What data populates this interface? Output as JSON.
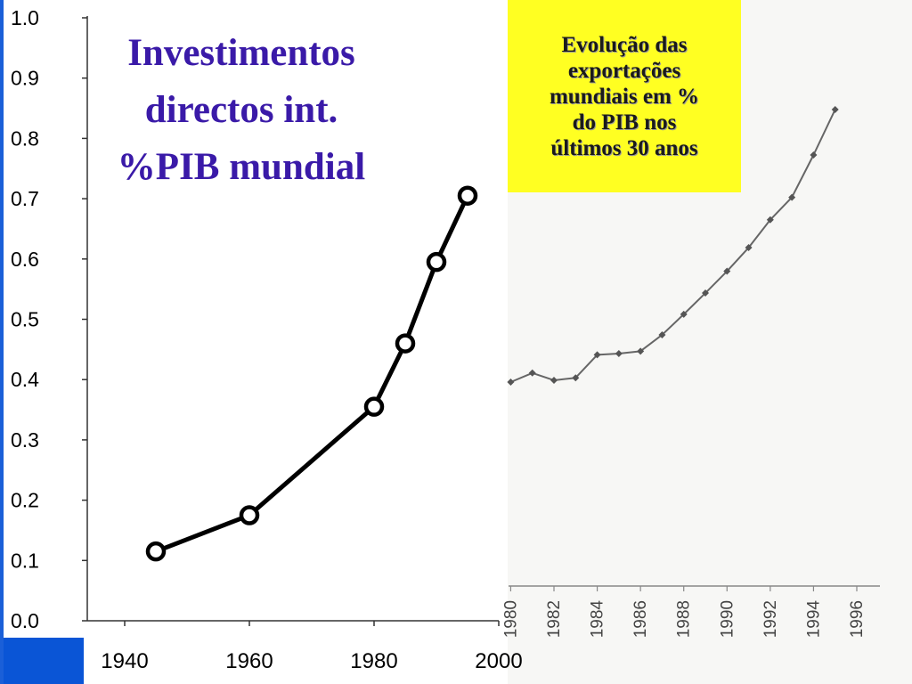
{
  "slide": {
    "background_color": "#1a5fd8",
    "accent_block_color": "#0a55d6",
    "callout": {
      "text": "Evolução das\nexportações\nmundiais em %\ndo PIB nos\núltimos  30 anos",
      "background_color": "#ffff22"
    }
  },
  "chart_data": [
    {
      "type": "line",
      "title": "Investimentos\ndirectos int.\n%PIB mundial",
      "title_color": "#3a1aa8",
      "xlabel": "",
      "ylabel": "",
      "x_ticks": [
        1940,
        1960,
        1980,
        2000
      ],
      "y_ticks": [
        "0.0",
        "0.1",
        "0.2",
        "0.3",
        "0.4",
        "0.5",
        "0.6",
        "0.7",
        "0.8",
        "0.9",
        "1.0"
      ],
      "xlim": [
        1934,
        2000
      ],
      "ylim": [
        0,
        1.0
      ],
      "grid": false,
      "marker": "open-circle",
      "series": [
        {
          "x": [
            1945,
            1960,
            1980,
            1985,
            1990,
            1995
          ],
          "y": [
            0.115,
            0.175,
            0.355,
            0.46,
            0.595,
            0.705
          ]
        }
      ]
    },
    {
      "type": "line",
      "title": "",
      "xlabel": "",
      "ylabel": "",
      "x_ticks": [
        "1980",
        "1982",
        "1984",
        "1986",
        "1988",
        "1990",
        "1992",
        "1994",
        "1996"
      ],
      "xlim": [
        1980,
        1997
      ],
      "grid": false,
      "marker": "diamond",
      "series": [
        {
          "x": [
            1980,
            1981,
            1982,
            1983,
            1984,
            1985,
            1986,
            1987,
            1988,
            1989,
            1990,
            1991,
            1992,
            1993,
            1994,
            1995
          ],
          "y": [
            0.4,
            0.415,
            0.403,
            0.407,
            0.445,
            0.447,
            0.451,
            0.478,
            0.512,
            0.547,
            0.583,
            0.622,
            0.668,
            0.705,
            0.775,
            0.85
          ]
        }
      ]
    }
  ]
}
